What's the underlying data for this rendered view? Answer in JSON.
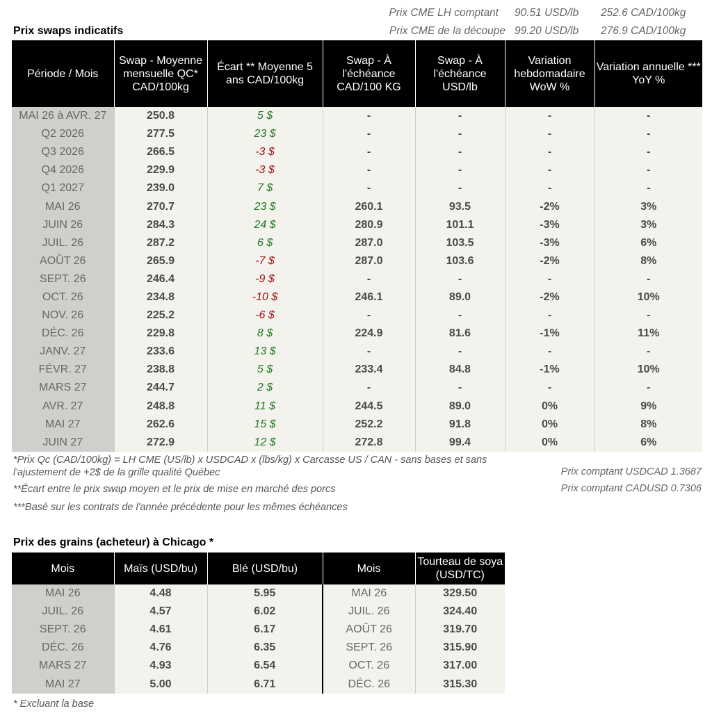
{
  "header": {
    "cme_lh_label": "Prix CME LH comptant",
    "cme_lh_usd": "90.51 USD/lb",
    "cme_lh_cad": "252.6 CAD/100kg",
    "cme_cut_label": "Prix CME de la découpe",
    "cme_cut_usd": "99.20 USD/lb",
    "cme_cut_cad": "276.9 CAD/100kg"
  },
  "swaps": {
    "title": "Prix swaps indicatifs",
    "columns": [
      "Période / Mois",
      "Swap - Moyenne mensuelle QC* CAD/100kg",
      "Écart ** Moyenne 5 ans CAD/100kg",
      "Swap - À l'échéance CAD/100 KG",
      "Swap - À l'échéance USD/lb",
      "Variation hebdomadaire WoW %",
      "Variation annuelle *** YoY %"
    ],
    "rows": [
      {
        "period": "MAI 26 à  AVR. 27",
        "swap": "250.8",
        "ecart": "5 $",
        "cad": "-",
        "usd": "-",
        "wow": "-",
        "yoy": "-"
      },
      {
        "period": "Q2 2026",
        "swap": "277.5",
        "ecart": "23 $",
        "cad": "-",
        "usd": "-",
        "wow": "-",
        "yoy": "-"
      },
      {
        "period": "Q3 2026",
        "swap": "266.5",
        "ecart": "-3 $",
        "cad": "-",
        "usd": "-",
        "wow": "-",
        "yoy": "-"
      },
      {
        "period": "Q4 2026",
        "swap": "229.9",
        "ecart": "-3 $",
        "cad": "-",
        "usd": "-",
        "wow": "-",
        "yoy": "-"
      },
      {
        "period": "Q1 2027",
        "swap": "239.0",
        "ecart": "7 $",
        "cad": "-",
        "usd": "-",
        "wow": "-",
        "yoy": "-"
      },
      {
        "period": "MAI 26",
        "swap": "270.7",
        "ecart": "23 $",
        "cad": "260.1",
        "usd": "93.5",
        "wow": "-2%",
        "yoy": "3%"
      },
      {
        "period": "JUIN 26",
        "swap": "284.3",
        "ecart": "24 $",
        "cad": "280.9",
        "usd": "101.1",
        "wow": "-3%",
        "yoy": "3%"
      },
      {
        "period": "JUIL. 26",
        "swap": "287.2",
        "ecart": "6 $",
        "cad": "287.0",
        "usd": "103.5",
        "wow": "-3%",
        "yoy": "6%"
      },
      {
        "period": "AOÛT 26",
        "swap": "265.9",
        "ecart": "-7 $",
        "cad": "287.0",
        "usd": "103.6",
        "wow": "-2%",
        "yoy": "8%"
      },
      {
        "period": "SEPT. 26",
        "swap": "246.4",
        "ecart": "-9 $",
        "cad": "-",
        "usd": "-",
        "wow": "-",
        "yoy": "-"
      },
      {
        "period": "OCT. 26",
        "swap": "234.8",
        "ecart": "-10 $",
        "cad": "246.1",
        "usd": "89.0",
        "wow": "-2%",
        "yoy": "10%"
      },
      {
        "period": "NOV. 26",
        "swap": "225.2",
        "ecart": "-6 $",
        "cad": "-",
        "usd": "-",
        "wow": "-",
        "yoy": "-"
      },
      {
        "period": "DÉC. 26",
        "swap": "229.8",
        "ecart": "8 $",
        "cad": "224.9",
        "usd": "81.6",
        "wow": "-1%",
        "yoy": "11%"
      },
      {
        "period": "JANV. 27",
        "swap": "233.6",
        "ecart": "13 $",
        "cad": "-",
        "usd": "-",
        "wow": "-",
        "yoy": "-"
      },
      {
        "period": "FÉVR. 27",
        "swap": "238.8",
        "ecart": "5 $",
        "cad": "233.4",
        "usd": "84.8",
        "wow": "-1%",
        "yoy": "10%"
      },
      {
        "period": "MARS 27",
        "swap": "244.7",
        "ecart": "2 $",
        "cad": "-",
        "usd": "-",
        "wow": "-",
        "yoy": "-"
      },
      {
        "period": "AVR. 27",
        "swap": "248.8",
        "ecart": "11 $",
        "cad": "244.5",
        "usd": "89.0",
        "wow": "0%",
        "yoy": "9%"
      },
      {
        "period": "MAI 27",
        "swap": "262.6",
        "ecart": "15 $",
        "cad": "252.2",
        "usd": "91.8",
        "wow": "0%",
        "yoy": "8%"
      },
      {
        "period": "JUIN 27",
        "swap": "272.9",
        "ecart": "12 $",
        "cad": "272.8",
        "usd": "99.4",
        "wow": "0%",
        "yoy": "6%"
      }
    ]
  },
  "notes": {
    "note1": "*Prix Qc (CAD/100kg) = LH CME (US/lb) x USDCAD x (lbs/kg) x Carcasse US / CAN - sans bases et sans l'ajustement de +2$ de la grille qualité Québec",
    "note2": "**Écart entre le prix swap moyen et le prix de mise en marché des porcs",
    "note3": "***Basé sur les contrats de l'année précédente pour les mêmes échéances",
    "usdcad": "Prix comptant USDCAD 1.3687",
    "cadusd": "Prix comptant CADUSD 0.7306"
  },
  "grains": {
    "title": "Prix des grains (acheteur) à Chicago *",
    "columns": [
      "Mois",
      "Maïs (USD/bu)",
      "Blé (USD/bu)",
      "Mois",
      "Tourteau de soya (USD/TC)"
    ],
    "rows": [
      {
        "mois": "MAI 26",
        "mais": "4.48",
        "ble": "5.95",
        "mois2": "MAI 26",
        "soya": "329.50"
      },
      {
        "mois": "JUIL. 26",
        "mais": "4.57",
        "ble": "6.02",
        "mois2": "JUIL. 26",
        "soya": "324.40"
      },
      {
        "mois": "SEPT. 26",
        "mais": "4.61",
        "ble": "6.17",
        "mois2": "AOÛT 26",
        "soya": "319.70"
      },
      {
        "mois": "DÉC. 26",
        "mais": "4.76",
        "ble": "6.35",
        "mois2": "SEPT. 26",
        "soya": "315.90"
      },
      {
        "mois": "MARS 27",
        "mais": "4.93",
        "ble": "6.54",
        "mois2": "OCT. 26",
        "soya": "317.00"
      },
      {
        "mois": "MAI 27",
        "mais": "5.00",
        "ble": "6.71",
        "mois2": "DÉC. 26",
        "soya": "315.30"
      }
    ],
    "footnote": "* Excluant la base"
  }
}
